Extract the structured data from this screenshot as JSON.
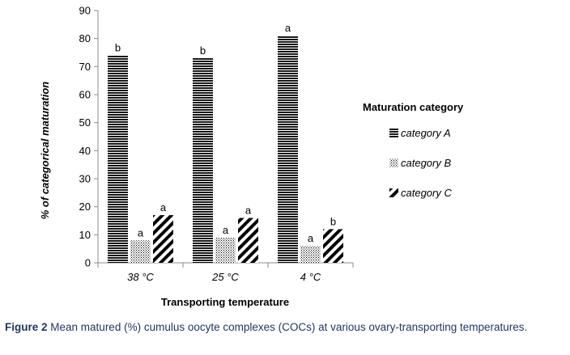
{
  "chart_data": {
    "type": "bar",
    "categories": [
      "38 °C",
      "25 °C",
      "4 °C"
    ],
    "series": [
      {
        "name": "category A",
        "values": [
          74,
          73,
          81
        ],
        "labels": [
          "b",
          "b",
          "a"
        ],
        "pattern": "horizontal-stripes"
      },
      {
        "name": "category B",
        "values": [
          8,
          9,
          6
        ],
        "labels": [
          "a",
          "a",
          "a"
        ],
        "pattern": "dots"
      },
      {
        "name": "category C",
        "values": [
          17,
          16,
          12
        ],
        "labels": [
          "a",
          "a",
          "b"
        ],
        "pattern": "diagonal-stripes"
      }
    ],
    "xlabel": "Transporting temperature",
    "ylabel": "% of categorical maturation",
    "ylim": [
      0,
      90
    ],
    "yticks": [
      0,
      10,
      20,
      30,
      40,
      50,
      60,
      70,
      80,
      90
    ],
    "legend": {
      "title": "Maturation category",
      "placement": "right"
    },
    "grid": false
  },
  "caption": {
    "label": "Figure 2",
    "text": "Mean matured (%) cumulus oocyte complexes (COCs) at various ovary-transporting temperatures."
  }
}
